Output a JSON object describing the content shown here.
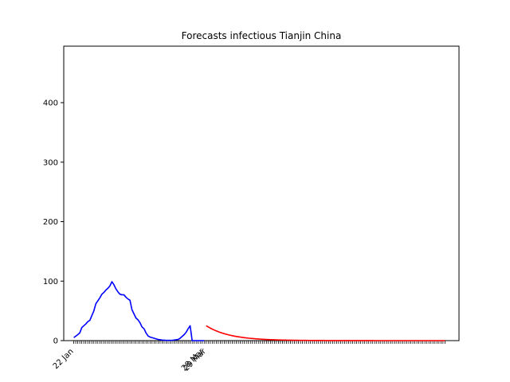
{
  "chart_data": {
    "type": "line",
    "title": "Forecasts infectious Tianjin China",
    "xlabel": "",
    "ylabel": "",
    "ylim": [
      0,
      495
    ],
    "yticks": [
      0,
      100,
      200,
      300,
      400
    ],
    "x_tick_labels": [
      {
        "label": "22 Jan",
        "day": 0
      },
      {
        "label": "28 Mar",
        "day": 65
      },
      {
        "label": "29 Mar",
        "day": 66
      }
    ],
    "x_range_days": [
      -5,
      192
    ],
    "total_minor_ticks": 185,
    "series": [
      {
        "color": "#0000ff",
        "x_days": [
          0,
          2,
          3,
          4,
          5,
          6,
          7,
          8,
          9,
          10,
          11,
          12,
          13,
          14,
          15,
          16,
          17,
          18,
          19,
          20,
          21,
          22,
          23,
          24,
          25,
          26,
          27,
          28,
          29,
          30,
          31,
          32,
          33,
          34,
          35,
          36,
          37,
          38,
          39,
          40,
          41,
          42,
          43,
          44,
          45,
          46,
          47,
          48,
          49,
          50,
          51,
          52,
          53,
          54,
          55,
          56,
          57,
          58,
          59,
          60,
          61,
          62,
          63,
          64,
          65
        ],
        "values": [
          5,
          10,
          13,
          22,
          25,
          28,
          32,
          34,
          42,
          50,
          62,
          67,
          72,
          78,
          81,
          85,
          88,
          92,
          99,
          94,
          87,
          82,
          78,
          77,
          77,
          73,
          70,
          68,
          52,
          45,
          38,
          35,
          30,
          23,
          20,
          13,
          8,
          6,
          5,
          4,
          3,
          2,
          1.5,
          1,
          0.8,
          0.5,
          0.5,
          0.5,
          0.5,
          1,
          1.5,
          2,
          4,
          7,
          10,
          14,
          20,
          25,
          0,
          0,
          0,
          0,
          0,
          0,
          0
        ]
      },
      {
        "color": "#ff0000",
        "x_start_day": 66,
        "x_end_day": 185,
        "start_value": 25,
        "decay_per_day": 0.085
      }
    ]
  }
}
